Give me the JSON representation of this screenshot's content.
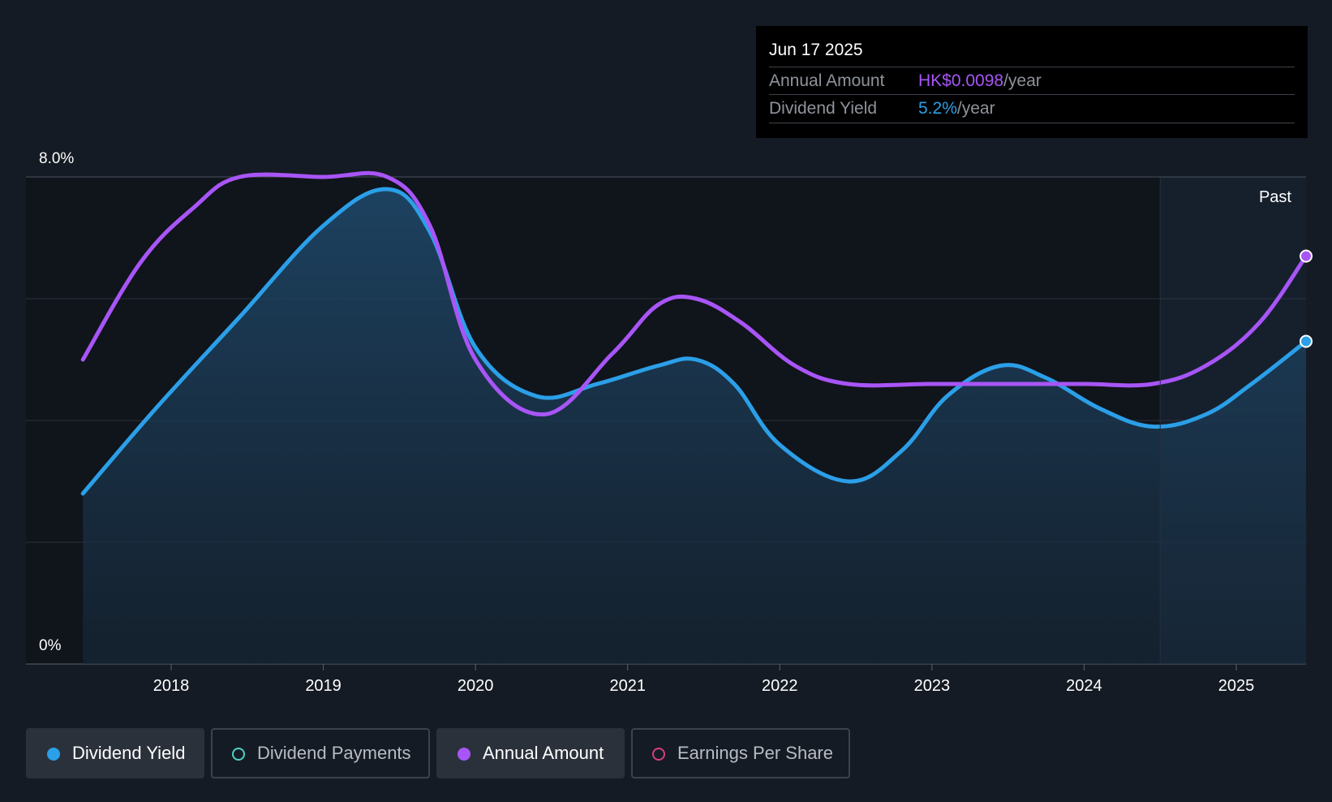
{
  "tooltip": {
    "date": "Jun 17 2025",
    "rows": [
      {
        "label": "Annual Amount",
        "value": "HK$0.0098",
        "unit": "/year",
        "color": "#a855f7"
      },
      {
        "label": "Dividend Yield",
        "value": "5.2%",
        "unit": "/year",
        "color": "#2b9fe8"
      }
    ]
  },
  "legend": [
    {
      "label": "Dividend Yield",
      "color": "#2b9fe8",
      "active": true
    },
    {
      "label": "Dividend Payments",
      "color": "#4fd1c5",
      "active": false
    },
    {
      "label": "Annual Amount",
      "color": "#a855f7",
      "active": true
    },
    {
      "label": "Earnings Per Share",
      "color": "#d63f7a",
      "active": false
    }
  ],
  "chart_data": {
    "type": "area",
    "past_label": "Past",
    "y_tick_labels": [
      "8.0%",
      "0%"
    ],
    "ylim": [
      0,
      8.0
    ],
    "x_ticks": [
      2018,
      2019,
      2020,
      2021,
      2022,
      2023,
      2024,
      2025
    ],
    "xlim": [
      2017.33,
      2025.55
    ],
    "past_boundary": 2024.5,
    "grid": true,
    "series": [
      {
        "name": "Dividend Yield",
        "color": "#2b9fe8",
        "fill": true,
        "x": [
          2017.42,
          2017.9,
          2018.45,
          2019.0,
          2019.42,
          2019.7,
          2020.0,
          2020.4,
          2020.8,
          2021.2,
          2021.45,
          2021.7,
          2022.0,
          2022.45,
          2022.8,
          2023.1,
          2023.45,
          2023.75,
          2024.1,
          2024.45,
          2024.8,
          2025.1,
          2025.55
        ],
        "values": [
          2.8,
          4.2,
          5.7,
          7.2,
          7.8,
          7.1,
          5.2,
          4.4,
          4.6,
          4.9,
          5.0,
          4.6,
          3.6,
          3.0,
          3.5,
          4.4,
          4.9,
          4.7,
          4.2,
          3.9,
          4.1,
          4.6,
          5.3
        ]
      },
      {
        "name": "Annual Amount",
        "color": "#a855f7",
        "fill": false,
        "x": [
          2017.42,
          2017.8,
          2018.15,
          2018.45,
          2019.0,
          2019.42,
          2019.7,
          2020.0,
          2020.45,
          2020.9,
          2021.2,
          2021.45,
          2021.75,
          2022.1,
          2022.45,
          2023.0,
          2023.5,
          2024.0,
          2024.45,
          2024.8,
          2025.15,
          2025.55
        ],
        "values": [
          5.0,
          6.6,
          7.5,
          8.0,
          8.0,
          8.0,
          7.2,
          5.0,
          4.1,
          5.1,
          5.9,
          6.0,
          5.6,
          4.9,
          4.6,
          4.6,
          4.6,
          4.6,
          4.6,
          4.9,
          5.6,
          6.7
        ]
      }
    ]
  }
}
